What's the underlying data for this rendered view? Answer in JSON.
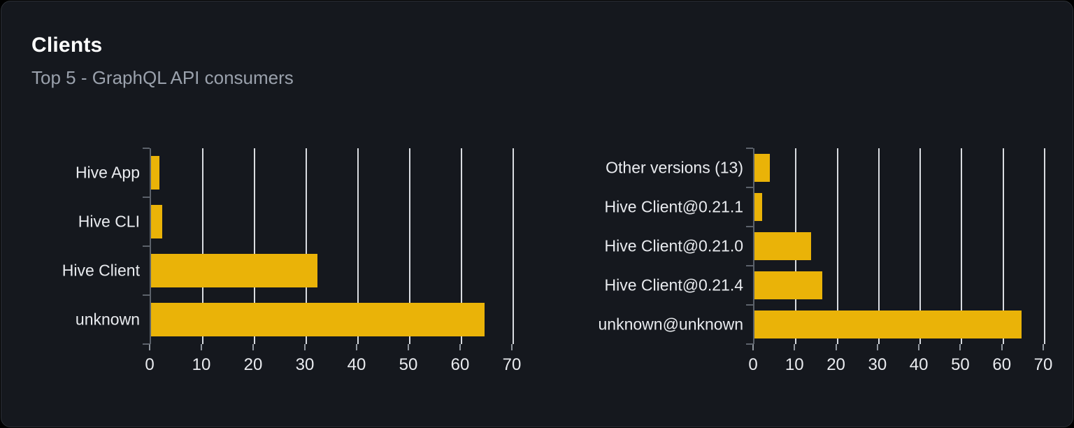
{
  "card": {
    "title": "Clients",
    "subtitle": "Top 5 - GraphQL API consumers"
  },
  "colors": {
    "page_background": "#000000",
    "card_background": "#15181e",
    "card_border": "#2c3036",
    "title_text": "#ffffff",
    "subtitle_text": "#9aa1ac",
    "bar_fill": "#eab308",
    "gridline": "#d9dce1",
    "axis_spine": "#5c626b",
    "tick_label_text": "#e9ebef"
  },
  "chart_data": [
    {
      "type": "bar",
      "orientation": "horizontal",
      "title": "",
      "categories": [
        "Hive App",
        "Hive CLI",
        "Hive Client",
        "unknown"
      ],
      "values": [
        1.6,
        2.2,
        32.2,
        64.4
      ],
      "xlabel": "",
      "ylabel": "",
      "xlim": [
        0,
        70
      ],
      "xticks": [
        0,
        10,
        20,
        30,
        40,
        50,
        60,
        70
      ],
      "grid": true,
      "legend": false,
      "bar_color": "#eab308"
    },
    {
      "type": "bar",
      "orientation": "horizontal",
      "title": "",
      "categories": [
        "Other versions (13)",
        "Hive Client@0.21.1",
        "Hive Client@0.21.0",
        "Hive Client@0.21.4",
        "unknown@unknown"
      ],
      "values": [
        3.7,
        1.8,
        13.6,
        16.3,
        64.4
      ],
      "xlabel": "",
      "ylabel": "",
      "xlim": [
        0,
        70
      ],
      "xticks": [
        0,
        10,
        20,
        30,
        40,
        50,
        60,
        70
      ],
      "grid": true,
      "legend": false,
      "bar_color": "#eab308"
    }
  ]
}
